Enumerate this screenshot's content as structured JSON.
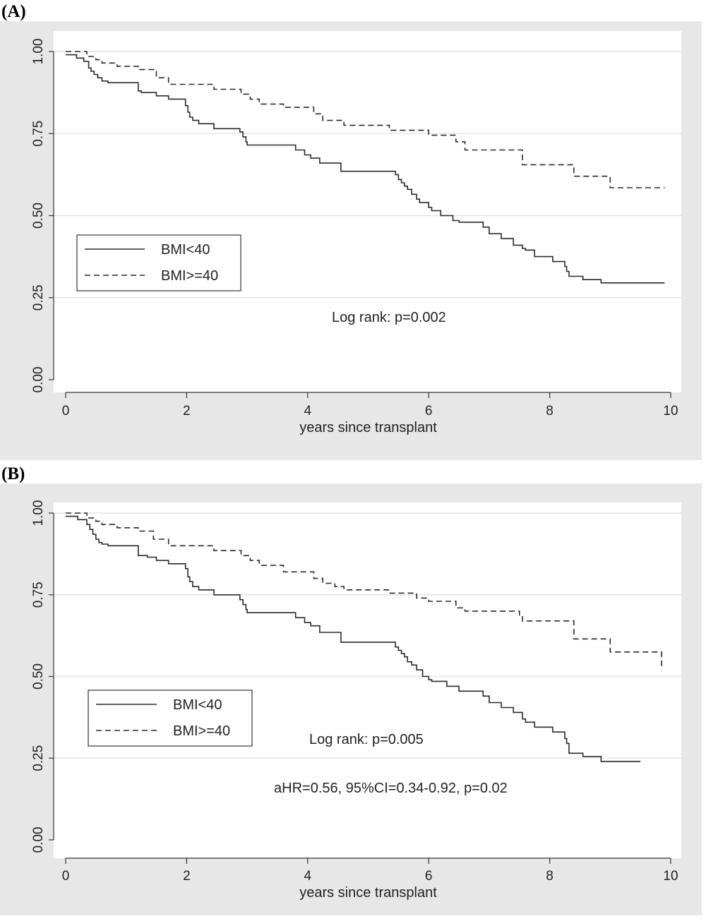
{
  "chart_data": [
    {
      "panel_label": "(A)",
      "type": "line",
      "step": true,
      "xlabel": "years since transplant",
      "ylabel": "",
      "xlim": [
        0,
        10
      ],
      "ylim": [
        0,
        1
      ],
      "xticks": [
        "0",
        "2",
        "4",
        "6",
        "8",
        "10"
      ],
      "yticks": [
        "0.00",
        "0.25",
        "0.50",
        "0.75",
        "1.00"
      ],
      "grid": "horizontal",
      "legend_position": "left",
      "annotations": [
        "Log rank: p=0.002"
      ],
      "series": [
        {
          "name": "BMI<40",
          "line_style": "solid",
          "x": [
            0,
            0.18,
            0.3,
            0.38,
            0.42,
            0.47,
            0.53,
            0.6,
            0.7,
            1.2,
            1.25,
            1.5,
            1.7,
            1.98,
            2.02,
            2.05,
            2.1,
            2.2,
            2.45,
            2.88,
            2.93,
            2.98,
            3.0,
            3.8,
            3.95,
            4.05,
            4.2,
            4.55,
            5.45,
            5.5,
            5.55,
            5.6,
            5.65,
            5.72,
            5.8,
            5.85,
            6.0,
            6.05,
            6.2,
            6.4,
            6.5,
            6.9,
            7.0,
            7.2,
            7.4,
            7.55,
            7.6,
            7.75,
            8.05,
            8.25,
            8.28,
            8.32,
            8.55,
            8.85,
            9.9
          ],
          "y": [
            0.99,
            0.98,
            0.97,
            0.95,
            0.94,
            0.93,
            0.92,
            0.91,
            0.905,
            0.88,
            0.875,
            0.865,
            0.855,
            0.835,
            0.815,
            0.8,
            0.79,
            0.78,
            0.765,
            0.755,
            0.74,
            0.725,
            0.715,
            0.7,
            0.685,
            0.675,
            0.66,
            0.635,
            0.625,
            0.61,
            0.6,
            0.59,
            0.58,
            0.565,
            0.55,
            0.54,
            0.525,
            0.515,
            0.5,
            0.485,
            0.48,
            0.465,
            0.445,
            0.43,
            0.41,
            0.4,
            0.395,
            0.375,
            0.36,
            0.345,
            0.33,
            0.315,
            0.305,
            0.295,
            0.295
          ]
        },
        {
          "name": "BMI>=40",
          "line_style": "dashed",
          "x": [
            0,
            0.35,
            0.5,
            0.6,
            0.85,
            1.2,
            1.5,
            1.7,
            2.45,
            2.65,
            2.9,
            3.05,
            3.2,
            3.6,
            4.1,
            4.25,
            4.45,
            4.6,
            5.35,
            5.8,
            6.0,
            6.45,
            6.6,
            7.5,
            7.55,
            8.4,
            9.0,
            9.9
          ],
          "y": [
            1.0,
            0.985,
            0.975,
            0.965,
            0.955,
            0.945,
            0.92,
            0.9,
            0.885,
            0.885,
            0.87,
            0.855,
            0.84,
            0.83,
            0.81,
            0.79,
            0.79,
            0.775,
            0.76,
            0.76,
            0.745,
            0.725,
            0.7,
            0.7,
            0.655,
            0.62,
            0.585,
            0.585
          ]
        }
      ]
    },
    {
      "panel_label": "(B)",
      "type": "line",
      "step": true,
      "xlabel": "years since transplant",
      "ylabel": "",
      "xlim": [
        0,
        10
      ],
      "ylim": [
        0,
        1
      ],
      "xticks": [
        "0",
        "2",
        "4",
        "6",
        "8",
        "10"
      ],
      "yticks": [
        "0.00",
        "0.25",
        "0.50",
        "0.75",
        "1.00"
      ],
      "grid": "horizontal",
      "legend_position": "left",
      "annotations": [
        "Log rank: p=0.005",
        "aHR=0.56, 95%CI=0.34-0.92, p=0.02"
      ],
      "series": [
        {
          "name": "BMI<40",
          "line_style": "solid",
          "x": [
            0,
            0.2,
            0.35,
            0.4,
            0.45,
            0.5,
            0.55,
            0.6,
            0.7,
            1.2,
            1.35,
            1.5,
            1.7,
            1.98,
            2.02,
            2.05,
            2.1,
            2.2,
            2.45,
            2.88,
            2.93,
            2.98,
            3.0,
            3.8,
            3.95,
            4.05,
            4.2,
            4.55,
            5.45,
            5.5,
            5.55,
            5.6,
            5.65,
            5.72,
            5.8,
            5.9,
            6.0,
            6.05,
            6.3,
            6.5,
            6.9,
            7.0,
            7.2,
            7.4,
            7.55,
            7.6,
            7.75,
            8.05,
            8.25,
            8.28,
            8.32,
            8.55,
            8.85,
            9.5
          ],
          "y": [
            0.99,
            0.98,
            0.965,
            0.95,
            0.935,
            0.92,
            0.91,
            0.905,
            0.9,
            0.87,
            0.865,
            0.855,
            0.845,
            0.83,
            0.805,
            0.79,
            0.775,
            0.765,
            0.75,
            0.735,
            0.72,
            0.705,
            0.695,
            0.68,
            0.665,
            0.655,
            0.635,
            0.605,
            0.59,
            0.58,
            0.57,
            0.56,
            0.545,
            0.535,
            0.52,
            0.5,
            0.49,
            0.485,
            0.47,
            0.455,
            0.44,
            0.42,
            0.405,
            0.39,
            0.37,
            0.36,
            0.345,
            0.33,
            0.31,
            0.295,
            0.265,
            0.255,
            0.24,
            0.24
          ]
        },
        {
          "name": "BMI>=40",
          "line_style": "dashed",
          "x": [
            0,
            0.35,
            0.5,
            0.6,
            0.85,
            1.2,
            1.45,
            1.7,
            2.45,
            2.65,
            2.9,
            3.05,
            3.2,
            3.6,
            4.1,
            4.25,
            4.45,
            4.6,
            5.35,
            5.8,
            6.0,
            6.45,
            6.6,
            7.5,
            7.55,
            8.4,
            9.0,
            9.85
          ],
          "y": [
            1.0,
            0.985,
            0.975,
            0.965,
            0.955,
            0.945,
            0.92,
            0.9,
            0.885,
            0.885,
            0.87,
            0.855,
            0.84,
            0.82,
            0.8,
            0.785,
            0.775,
            0.765,
            0.755,
            0.74,
            0.73,
            0.71,
            0.7,
            0.685,
            0.67,
            0.615,
            0.575,
            0.52
          ]
        }
      ]
    }
  ]
}
